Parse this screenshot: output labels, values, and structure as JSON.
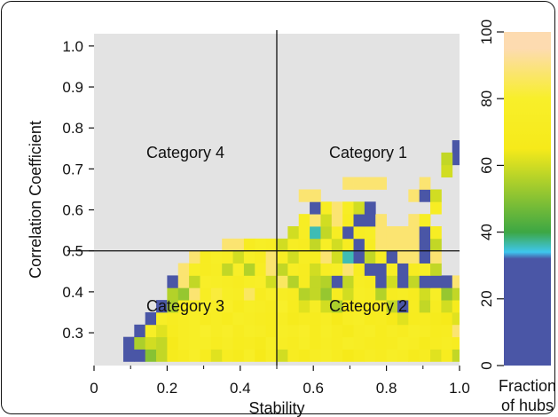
{
  "chart_data": {
    "type": "heatmap",
    "xlabel": "Stability",
    "ylabel": "Correlation Coefficient",
    "xlim": [
      0,
      1.0
    ],
    "ylim": [
      0.22,
      1.03
    ],
    "x_ticks": [
      "0",
      "0.2",
      "0.4",
      "0.6",
      "0.8",
      "1.0"
    ],
    "x_tick_values": [
      0,
      0.2,
      0.4,
      0.6,
      0.8,
      1.0
    ],
    "y_ticks": [
      "0.3",
      "0.4",
      "0.5",
      "0.6",
      "0.7",
      "0.8",
      "0.9",
      "1.0"
    ],
    "y_tick_values": [
      0.3,
      0.4,
      0.5,
      0.6,
      0.7,
      0.8,
      0.9,
      1.0
    ],
    "background": "#e3e3e3",
    "dividers": {
      "x": 0.5,
      "y": 0.5
    },
    "categories": [
      {
        "label": "Category 1",
        "x": 0.75,
        "y": 0.74
      },
      {
        "label": "Category 2",
        "x": 0.75,
        "y": 0.365
      },
      {
        "label": "Category 3",
        "x": 0.25,
        "y": 0.365
      },
      {
        "label": "Category 4",
        "x": 0.25,
        "y": 0.74
      }
    ],
    "colorbar": {
      "ticks": [
        "0",
        "20",
        "40",
        "60",
        "80",
        "100"
      ],
      "tick_values": [
        0,
        20,
        40,
        60,
        80,
        100
      ],
      "label_lines": [
        "Fraction",
        "of hubs"
      ],
      "stops": [
        {
          "value": 0,
          "color": "#4a56a6"
        },
        {
          "value": 32,
          "color": "#4a56a6"
        },
        {
          "value": 34,
          "color": "#3ec6ee"
        },
        {
          "value": 40,
          "color": "#3da744"
        },
        {
          "value": 65,
          "color": "#f6ea1a"
        },
        {
          "value": 80,
          "color": "#f8ef2a"
        },
        {
          "value": 95,
          "color": "#fddbb0"
        },
        {
          "value": 100,
          "color": "#fddbb0"
        }
      ]
    },
    "bin": {
      "dx": 0.03,
      "dy": 0.03
    },
    "cells": [
      [
        0.08,
        0.23,
        25
      ],
      [
        0.11,
        0.23,
        10
      ],
      [
        0.14,
        0.23,
        50
      ],
      [
        0.17,
        0.23,
        58
      ],
      [
        0.2,
        0.23,
        68
      ],
      [
        0.23,
        0.23,
        72
      ],
      [
        0.26,
        0.23,
        78
      ],
      [
        0.29,
        0.23,
        70
      ],
      [
        0.32,
        0.23,
        62
      ],
      [
        0.35,
        0.23,
        72
      ],
      [
        0.38,
        0.23,
        68
      ],
      [
        0.41,
        0.23,
        76
      ],
      [
        0.44,
        0.23,
        65
      ],
      [
        0.47,
        0.23,
        74
      ],
      [
        0.5,
        0.23,
        60
      ],
      [
        0.53,
        0.23,
        72
      ],
      [
        0.56,
        0.23,
        68
      ],
      [
        0.59,
        0.23,
        74
      ],
      [
        0.62,
        0.23,
        76
      ],
      [
        0.65,
        0.23,
        72
      ],
      [
        0.68,
        0.23,
        65
      ],
      [
        0.71,
        0.23,
        70
      ],
      [
        0.74,
        0.23,
        74
      ],
      [
        0.77,
        0.23,
        72
      ],
      [
        0.8,
        0.23,
        76
      ],
      [
        0.83,
        0.23,
        74
      ],
      [
        0.86,
        0.23,
        68
      ],
      [
        0.89,
        0.23,
        72
      ],
      [
        0.92,
        0.23,
        62
      ],
      [
        0.95,
        0.23,
        70
      ],
      [
        0.98,
        0.23,
        58
      ],
      [
        0.08,
        0.26,
        10
      ],
      [
        0.11,
        0.26,
        55
      ],
      [
        0.14,
        0.26,
        60
      ],
      [
        0.17,
        0.26,
        58
      ],
      [
        0.2,
        0.26,
        66
      ],
      [
        0.23,
        0.26,
        74
      ],
      [
        0.26,
        0.26,
        76
      ],
      [
        0.29,
        0.26,
        76
      ],
      [
        0.32,
        0.26,
        72
      ],
      [
        0.35,
        0.26,
        75
      ],
      [
        0.38,
        0.26,
        70
      ],
      [
        0.41,
        0.26,
        72
      ],
      [
        0.44,
        0.26,
        68
      ],
      [
        0.47,
        0.26,
        76
      ],
      [
        0.5,
        0.26,
        74
      ],
      [
        0.53,
        0.26,
        72
      ],
      [
        0.56,
        0.26,
        76
      ],
      [
        0.59,
        0.26,
        70
      ],
      [
        0.62,
        0.26,
        74
      ],
      [
        0.65,
        0.26,
        72
      ],
      [
        0.68,
        0.26,
        76
      ],
      [
        0.71,
        0.26,
        74
      ],
      [
        0.74,
        0.26,
        72
      ],
      [
        0.77,
        0.26,
        70
      ],
      [
        0.8,
        0.26,
        72
      ],
      [
        0.83,
        0.26,
        76
      ],
      [
        0.86,
        0.26,
        74
      ],
      [
        0.89,
        0.26,
        68
      ],
      [
        0.92,
        0.26,
        72
      ],
      [
        0.95,
        0.26,
        74
      ],
      [
        0.98,
        0.26,
        72
      ],
      [
        0.11,
        0.29,
        15
      ],
      [
        0.14,
        0.29,
        76
      ],
      [
        0.17,
        0.29,
        62
      ],
      [
        0.2,
        0.29,
        70
      ],
      [
        0.23,
        0.29,
        74
      ],
      [
        0.26,
        0.29,
        76
      ],
      [
        0.29,
        0.29,
        80
      ],
      [
        0.32,
        0.29,
        74
      ],
      [
        0.35,
        0.29,
        78
      ],
      [
        0.38,
        0.29,
        72
      ],
      [
        0.41,
        0.29,
        76
      ],
      [
        0.44,
        0.29,
        74
      ],
      [
        0.47,
        0.29,
        70
      ],
      [
        0.5,
        0.29,
        76
      ],
      [
        0.53,
        0.29,
        74
      ],
      [
        0.56,
        0.29,
        78
      ],
      [
        0.59,
        0.29,
        70
      ],
      [
        0.62,
        0.29,
        76
      ],
      [
        0.65,
        0.29,
        72
      ],
      [
        0.68,
        0.29,
        68
      ],
      [
        0.71,
        0.29,
        74
      ],
      [
        0.74,
        0.29,
        76
      ],
      [
        0.77,
        0.29,
        70
      ],
      [
        0.8,
        0.29,
        74
      ],
      [
        0.83,
        0.29,
        72
      ],
      [
        0.86,
        0.29,
        76
      ],
      [
        0.89,
        0.29,
        74
      ],
      [
        0.92,
        0.29,
        70
      ],
      [
        0.95,
        0.29,
        72
      ],
      [
        0.98,
        0.29,
        88
      ],
      [
        0.14,
        0.32,
        8
      ],
      [
        0.17,
        0.32,
        76
      ],
      [
        0.2,
        0.32,
        72
      ],
      [
        0.23,
        0.32,
        74
      ],
      [
        0.26,
        0.32,
        76
      ],
      [
        0.29,
        0.32,
        72
      ],
      [
        0.32,
        0.32,
        74
      ],
      [
        0.35,
        0.32,
        70
      ],
      [
        0.38,
        0.32,
        76
      ],
      [
        0.41,
        0.32,
        74
      ],
      [
        0.44,
        0.32,
        72
      ],
      [
        0.47,
        0.32,
        70
      ],
      [
        0.5,
        0.32,
        74
      ],
      [
        0.53,
        0.32,
        68
      ],
      [
        0.56,
        0.32,
        72
      ],
      [
        0.59,
        0.32,
        70
      ],
      [
        0.62,
        0.32,
        74
      ],
      [
        0.65,
        0.32,
        66
      ],
      [
        0.68,
        0.32,
        74
      ],
      [
        0.71,
        0.32,
        76
      ],
      [
        0.74,
        0.32,
        70
      ],
      [
        0.77,
        0.32,
        72
      ],
      [
        0.8,
        0.32,
        66
      ],
      [
        0.83,
        0.32,
        62
      ],
      [
        0.86,
        0.32,
        70
      ],
      [
        0.89,
        0.32,
        72
      ],
      [
        0.92,
        0.32,
        68
      ],
      [
        0.95,
        0.32,
        65
      ],
      [
        0.98,
        0.32,
        62
      ],
      [
        0.17,
        0.35,
        10
      ],
      [
        0.2,
        0.35,
        55
      ],
      [
        0.23,
        0.35,
        72
      ],
      [
        0.26,
        0.35,
        76
      ],
      [
        0.29,
        0.35,
        80
      ],
      [
        0.32,
        0.35,
        74
      ],
      [
        0.35,
        0.35,
        78
      ],
      [
        0.38,
        0.35,
        70
      ],
      [
        0.41,
        0.35,
        76
      ],
      [
        0.44,
        0.35,
        74
      ],
      [
        0.47,
        0.35,
        72
      ],
      [
        0.5,
        0.35,
        80
      ],
      [
        0.53,
        0.35,
        70
      ],
      [
        0.56,
        0.35,
        62
      ],
      [
        0.59,
        0.35,
        74
      ],
      [
        0.62,
        0.35,
        60
      ],
      [
        0.65,
        0.35,
        55
      ],
      [
        0.68,
        0.35,
        68
      ],
      [
        0.71,
        0.35,
        72
      ],
      [
        0.74,
        0.35,
        70
      ],
      [
        0.77,
        0.35,
        74
      ],
      [
        0.8,
        0.35,
        58
      ],
      [
        0.83,
        0.35,
        10
      ],
      [
        0.86,
        0.35,
        72
      ],
      [
        0.89,
        0.35,
        58
      ],
      [
        0.92,
        0.35,
        72
      ],
      [
        0.95,
        0.35,
        60
      ],
      [
        0.98,
        0.35,
        68
      ],
      [
        0.2,
        0.38,
        56
      ],
      [
        0.23,
        0.38,
        52
      ],
      [
        0.26,
        0.38,
        88
      ],
      [
        0.29,
        0.38,
        74
      ],
      [
        0.32,
        0.38,
        82
      ],
      [
        0.35,
        0.38,
        76
      ],
      [
        0.38,
        0.38,
        74
      ],
      [
        0.41,
        0.38,
        86
      ],
      [
        0.44,
        0.38,
        72
      ],
      [
        0.47,
        0.38,
        78
      ],
      [
        0.5,
        0.38,
        74
      ],
      [
        0.53,
        0.38,
        72
      ],
      [
        0.56,
        0.38,
        56
      ],
      [
        0.59,
        0.38,
        58
      ],
      [
        0.62,
        0.38,
        52
      ],
      [
        0.65,
        0.38,
        72
      ],
      [
        0.68,
        0.38,
        60
      ],
      [
        0.71,
        0.38,
        76
      ],
      [
        0.74,
        0.38,
        74
      ],
      [
        0.77,
        0.38,
        56
      ],
      [
        0.8,
        0.38,
        72
      ],
      [
        0.83,
        0.38,
        74
      ],
      [
        0.86,
        0.38,
        70
      ],
      [
        0.89,
        0.38,
        60
      ],
      [
        0.92,
        0.38,
        76
      ],
      [
        0.95,
        0.38,
        52
      ],
      [
        0.98,
        0.38,
        58
      ],
      [
        0.2,
        0.41,
        8
      ],
      [
        0.23,
        0.41,
        88
      ],
      [
        0.26,
        0.41,
        58
      ],
      [
        0.29,
        0.41,
        78
      ],
      [
        0.32,
        0.41,
        76
      ],
      [
        0.35,
        0.41,
        74
      ],
      [
        0.38,
        0.41,
        72
      ],
      [
        0.41,
        0.41,
        76
      ],
      [
        0.44,
        0.41,
        78
      ],
      [
        0.47,
        0.41,
        60
      ],
      [
        0.5,
        0.41,
        86
      ],
      [
        0.53,
        0.41,
        56
      ],
      [
        0.56,
        0.41,
        72
      ],
      [
        0.59,
        0.41,
        58
      ],
      [
        0.62,
        0.41,
        56
      ],
      [
        0.65,
        0.41,
        8
      ],
      [
        0.68,
        0.41,
        58
      ],
      [
        0.71,
        0.41,
        74
      ],
      [
        0.74,
        0.41,
        72
      ],
      [
        0.77,
        0.41,
        12
      ],
      [
        0.8,
        0.41,
        60
      ],
      [
        0.83,
        0.41,
        10
      ],
      [
        0.86,
        0.41,
        58
      ],
      [
        0.89,
        0.41,
        12
      ],
      [
        0.92,
        0.41,
        8
      ],
      [
        0.95,
        0.41,
        12
      ],
      [
        0.98,
        0.41,
        88
      ],
      [
        0.23,
        0.44,
        88
      ],
      [
        0.26,
        0.44,
        76
      ],
      [
        0.29,
        0.44,
        72
      ],
      [
        0.32,
        0.44,
        74
      ],
      [
        0.35,
        0.44,
        58
      ],
      [
        0.38,
        0.44,
        78
      ],
      [
        0.41,
        0.44,
        56
      ],
      [
        0.44,
        0.44,
        74
      ],
      [
        0.47,
        0.44,
        88
      ],
      [
        0.5,
        0.44,
        58
      ],
      [
        0.53,
        0.44,
        74
      ],
      [
        0.56,
        0.44,
        72
      ],
      [
        0.59,
        0.44,
        60
      ],
      [
        0.62,
        0.44,
        74
      ],
      [
        0.65,
        0.44,
        76
      ],
      [
        0.68,
        0.44,
        88
      ],
      [
        0.71,
        0.44,
        72
      ],
      [
        0.74,
        0.44,
        25
      ],
      [
        0.77,
        0.44,
        12
      ],
      [
        0.8,
        0.44,
        74
      ],
      [
        0.83,
        0.44,
        8
      ],
      [
        0.86,
        0.44,
        72
      ],
      [
        0.89,
        0.44,
        76
      ],
      [
        0.92,
        0.44,
        58
      ],
      [
        0.26,
        0.47,
        88
      ],
      [
        0.29,
        0.47,
        72
      ],
      [
        0.32,
        0.47,
        76
      ],
      [
        0.35,
        0.47,
        74
      ],
      [
        0.38,
        0.47,
        60
      ],
      [
        0.41,
        0.47,
        76
      ],
      [
        0.44,
        0.47,
        72
      ],
      [
        0.47,
        0.47,
        88
      ],
      [
        0.5,
        0.47,
        74
      ],
      [
        0.53,
        0.47,
        60
      ],
      [
        0.56,
        0.47,
        74
      ],
      [
        0.59,
        0.47,
        72
      ],
      [
        0.62,
        0.47,
        88
      ],
      [
        0.65,
        0.47,
        60
      ],
      [
        0.68,
        0.47,
        36
      ],
      [
        0.71,
        0.47,
        10
      ],
      [
        0.74,
        0.47,
        58
      ],
      [
        0.77,
        0.47,
        74
      ],
      [
        0.8,
        0.47,
        12
      ],
      [
        0.83,
        0.47,
        88
      ],
      [
        0.86,
        0.47,
        88
      ],
      [
        0.89,
        0.47,
        12
      ],
      [
        0.92,
        0.47,
        88
      ],
      [
        0.35,
        0.5,
        88
      ],
      [
        0.38,
        0.5,
        88
      ],
      [
        0.41,
        0.5,
        72
      ],
      [
        0.44,
        0.5,
        76
      ],
      [
        0.47,
        0.5,
        74
      ],
      [
        0.5,
        0.5,
        60
      ],
      [
        0.53,
        0.5,
        74
      ],
      [
        0.56,
        0.5,
        72
      ],
      [
        0.59,
        0.5,
        58
      ],
      [
        0.62,
        0.5,
        76
      ],
      [
        0.65,
        0.5,
        60
      ],
      [
        0.68,
        0.5,
        72
      ],
      [
        0.71,
        0.5,
        12
      ],
      [
        0.74,
        0.5,
        74
      ],
      [
        0.77,
        0.5,
        88
      ],
      [
        0.8,
        0.5,
        88
      ],
      [
        0.83,
        0.5,
        88
      ],
      [
        0.86,
        0.5,
        88
      ],
      [
        0.89,
        0.5,
        10
      ],
      [
        0.92,
        0.5,
        58
      ],
      [
        0.53,
        0.53,
        60
      ],
      [
        0.56,
        0.53,
        74
      ],
      [
        0.59,
        0.53,
        36
      ],
      [
        0.62,
        0.53,
        58
      ],
      [
        0.65,
        0.53,
        74
      ],
      [
        0.68,
        0.53,
        10
      ],
      [
        0.71,
        0.53,
        74
      ],
      [
        0.74,
        0.53,
        76
      ],
      [
        0.77,
        0.53,
        88
      ],
      [
        0.8,
        0.53,
        88
      ],
      [
        0.83,
        0.53,
        88
      ],
      [
        0.86,
        0.53,
        88
      ],
      [
        0.89,
        0.53,
        8
      ],
      [
        0.92,
        0.53,
        74
      ],
      [
        0.56,
        0.56,
        74
      ],
      [
        0.59,
        0.56,
        88
      ],
      [
        0.62,
        0.56,
        60
      ],
      [
        0.65,
        0.56,
        88
      ],
      [
        0.68,
        0.56,
        72
      ],
      [
        0.71,
        0.56,
        28
      ],
      [
        0.74,
        0.56,
        12
      ],
      [
        0.77,
        0.56,
        88
      ],
      [
        0.86,
        0.56,
        88
      ],
      [
        0.89,
        0.56,
        76
      ],
      [
        0.59,
        0.59,
        10
      ],
      [
        0.62,
        0.59,
        74
      ],
      [
        0.65,
        0.59,
        88
      ],
      [
        0.68,
        0.59,
        74
      ],
      [
        0.71,
        0.59,
        60
      ],
      [
        0.74,
        0.59,
        10
      ],
      [
        0.92,
        0.59,
        74
      ],
      [
        0.56,
        0.62,
        88
      ],
      [
        0.59,
        0.62,
        88
      ],
      [
        0.86,
        0.62,
        88
      ],
      [
        0.89,
        0.62,
        10
      ],
      [
        0.92,
        0.62,
        60
      ],
      [
        0.68,
        0.65,
        88
      ],
      [
        0.71,
        0.65,
        88
      ],
      [
        0.74,
        0.65,
        88
      ],
      [
        0.77,
        0.65,
        88
      ],
      [
        0.89,
        0.65,
        88
      ],
      [
        0.95,
        0.68,
        60
      ],
      [
        0.98,
        0.71,
        10
      ],
      [
        0.95,
        0.71,
        58
      ],
      [
        0.98,
        0.74,
        10
      ]
    ]
  }
}
